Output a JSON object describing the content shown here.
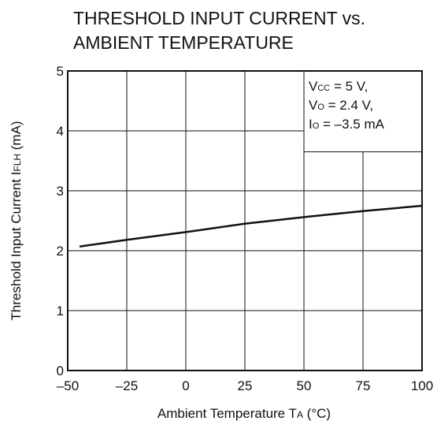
{
  "chart_data": {
    "type": "line",
    "title": [
      "THRESHOLD INPUT CURRENT vs.",
      "AMBIENT TEMPERATURE"
    ],
    "xlabel": {
      "text": "Ambient Temperature  T",
      "sub": "A",
      "unit": " (°C)"
    },
    "ylabel": {
      "text": "Threshold Input Current  I",
      "sub": "FLH",
      "unit": " (mA)"
    },
    "xlim": [
      -50,
      100
    ],
    "ylim": [
      0,
      5
    ],
    "xticks": [
      -50,
      -25,
      0,
      25,
      50,
      75,
      100
    ],
    "xtick_labels": [
      "–50",
      "–25",
      "0",
      "25",
      "50",
      "75",
      "100"
    ],
    "yticks": [
      0,
      1,
      2,
      3,
      4,
      5
    ],
    "ytick_labels": [
      "0",
      "1",
      "2",
      "3",
      "4",
      "5"
    ],
    "grid": true,
    "conditions": [
      {
        "main": "V",
        "sub": "CC",
        "rest": " = 5 V,"
      },
      {
        "main": "V",
        "sub": "O",
        "rest": " = 2.4 V,"
      },
      {
        "main": "I",
        "sub": "O",
        "rest": " = –3.5 mA"
      }
    ],
    "series": [
      {
        "x": [
          -45,
          -25,
          0,
          25,
          50,
          75,
          100
        ],
        "y": [
          2.07,
          2.18,
          2.31,
          2.45,
          2.56,
          2.66,
          2.75
        ]
      }
    ]
  }
}
